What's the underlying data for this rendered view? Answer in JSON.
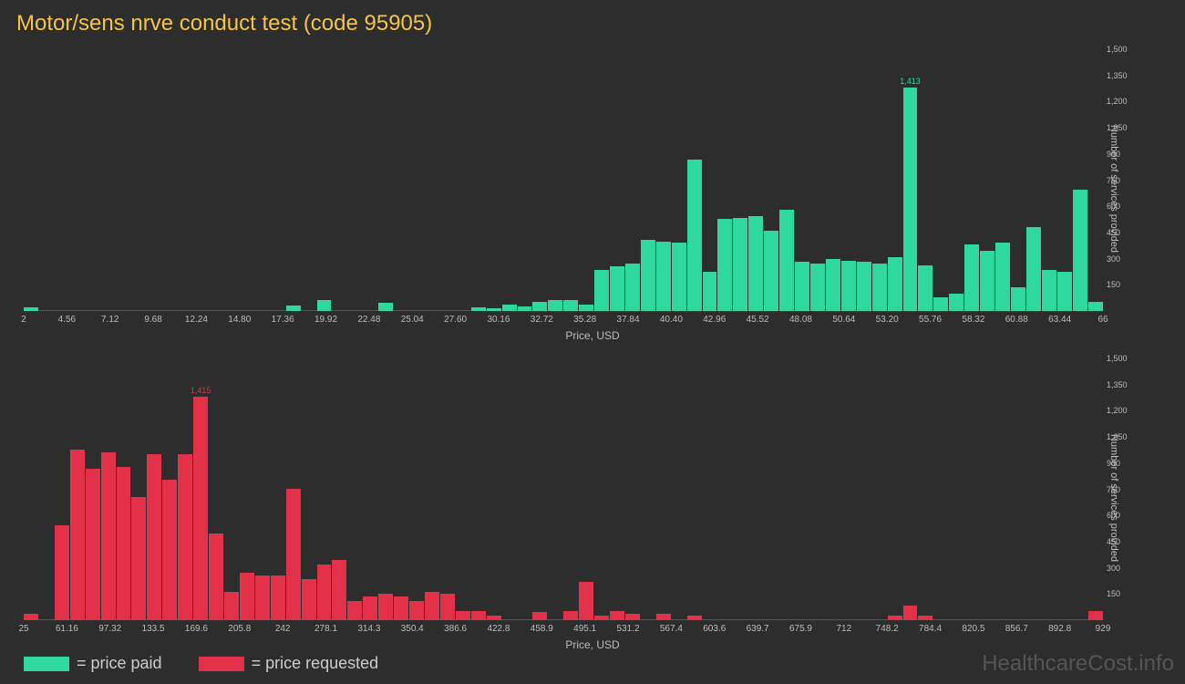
{
  "title": "Motor/sens nrve conduct test (code 95905)",
  "watermark": "HealthcareCost.info",
  "colors": {
    "background": "#2d2d2d",
    "title": "#f5c542",
    "paid": "#2fd89f",
    "requested": "#e3314a",
    "axis_text": "#bbbbbb",
    "baseline": "#555555"
  },
  "legend": [
    {
      "swatch_color": "#2fd89f",
      "label": "= price paid"
    },
    {
      "swatch_color": "#e3314a",
      "label": "= price requested"
    }
  ],
  "chart_paid": {
    "type": "histogram",
    "bar_color": "#2fd89f",
    "ylim": [
      0,
      1500
    ],
    "ytick_step": 150,
    "yticks": [
      "1,500",
      "1,350",
      "1,200",
      "1,050",
      "900",
      "750",
      "600",
      "450",
      "300",
      "150"
    ],
    "y_label": "Number of services provided",
    "x_label": "Price, USD",
    "x_min": 2,
    "x_max": 66,
    "x_ticks": [
      "2",
      "4.56",
      "7.12",
      "9.68",
      "12.24",
      "14.80",
      "17.36",
      "19.92",
      "22.48",
      "25.04",
      "27.60",
      "30.16",
      "32.72",
      "35.28",
      "37.84",
      "40.40",
      "42.96",
      "45.52",
      "48.08",
      "50.64",
      "53.20",
      "55.76",
      "58.32",
      "60.88",
      "63.44",
      "66"
    ],
    "max_value_label": "1,413",
    "values": [
      25,
      0,
      0,
      0,
      0,
      0,
      0,
      0,
      0,
      0,
      0,
      0,
      0,
      0,
      0,
      0,
      0,
      35,
      0,
      70,
      0,
      0,
      0,
      50,
      0,
      0,
      0,
      0,
      0,
      25,
      20,
      40,
      30,
      60,
      70,
      70,
      40,
      260,
      280,
      300,
      450,
      440,
      430,
      960,
      250,
      580,
      590,
      600,
      510,
      640,
      310,
      300,
      330,
      320,
      310,
      300,
      340,
      1413,
      290,
      85,
      110,
      420,
      380,
      430,
      150,
      530,
      260,
      250,
      770,
      60
    ],
    "label_fontsize": 10,
    "tick_fontsize": 9
  },
  "chart_requested": {
    "type": "histogram",
    "bar_color": "#e3314a",
    "ylim": [
      0,
      1500
    ],
    "ytick_step": 150,
    "yticks": [
      "1,500",
      "1,350",
      "1,200",
      "1,050",
      "900",
      "750",
      "600",
      "450",
      "300",
      "150"
    ],
    "y_label": "Number of services provided",
    "x_label": "Price, USD",
    "x_min": 25,
    "x_max": 929,
    "x_ticks": [
      "25",
      "61.16",
      "97.32",
      "133.5",
      "169.6",
      "205.8",
      "242",
      "278.1",
      "314.3",
      "350.4",
      "386.6",
      "422.8",
      "458.9",
      "495.1",
      "531.2",
      "567.4",
      "603.6",
      "639.7",
      "675.9",
      "712",
      "748.2",
      "784.4",
      "820.5",
      "856.7",
      "892.8",
      "929"
    ],
    "max_value_label": "1,415",
    "values": [
      40,
      0,
      600,
      1080,
      960,
      1060,
      970,
      780,
      1050,
      890,
      1050,
      1415,
      550,
      180,
      300,
      280,
      280,
      830,
      260,
      350,
      380,
      120,
      150,
      170,
      150,
      120,
      180,
      170,
      60,
      55,
      30,
      0,
      0,
      50,
      0,
      60,
      240,
      30,
      60,
      40,
      0,
      40,
      0,
      30,
      0,
      0,
      0,
      0,
      0,
      0,
      0,
      0,
      0,
      0,
      0,
      0,
      30,
      90,
      30,
      0,
      0,
      0,
      0,
      0,
      0,
      0,
      0,
      0,
      0,
      60
    ],
    "label_fontsize": 10,
    "tick_fontsize": 9
  }
}
